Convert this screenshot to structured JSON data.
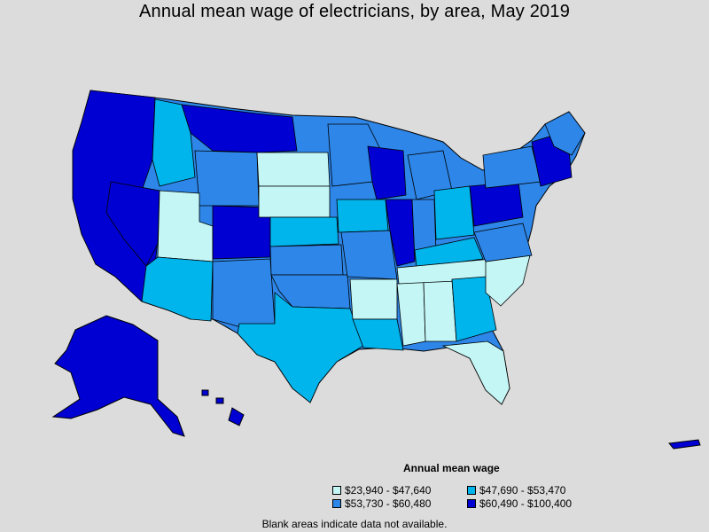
{
  "title": "Annual mean wage of electricians, by area, May 2019",
  "legend": {
    "title": "Annual mean wage",
    "items": [
      {
        "label": "$23,940 - $47,640",
        "color": "#c4f6f6"
      },
      {
        "label": "$47,690 - $53,470",
        "color": "#00b4ec"
      },
      {
        "label": "$53,730 - $60,480",
        "color": "#2d86e8"
      },
      {
        "label": "$60,490 - $100,400",
        "color": "#0000d2"
      }
    ]
  },
  "footnote": "Blank areas indicate data not available."
}
